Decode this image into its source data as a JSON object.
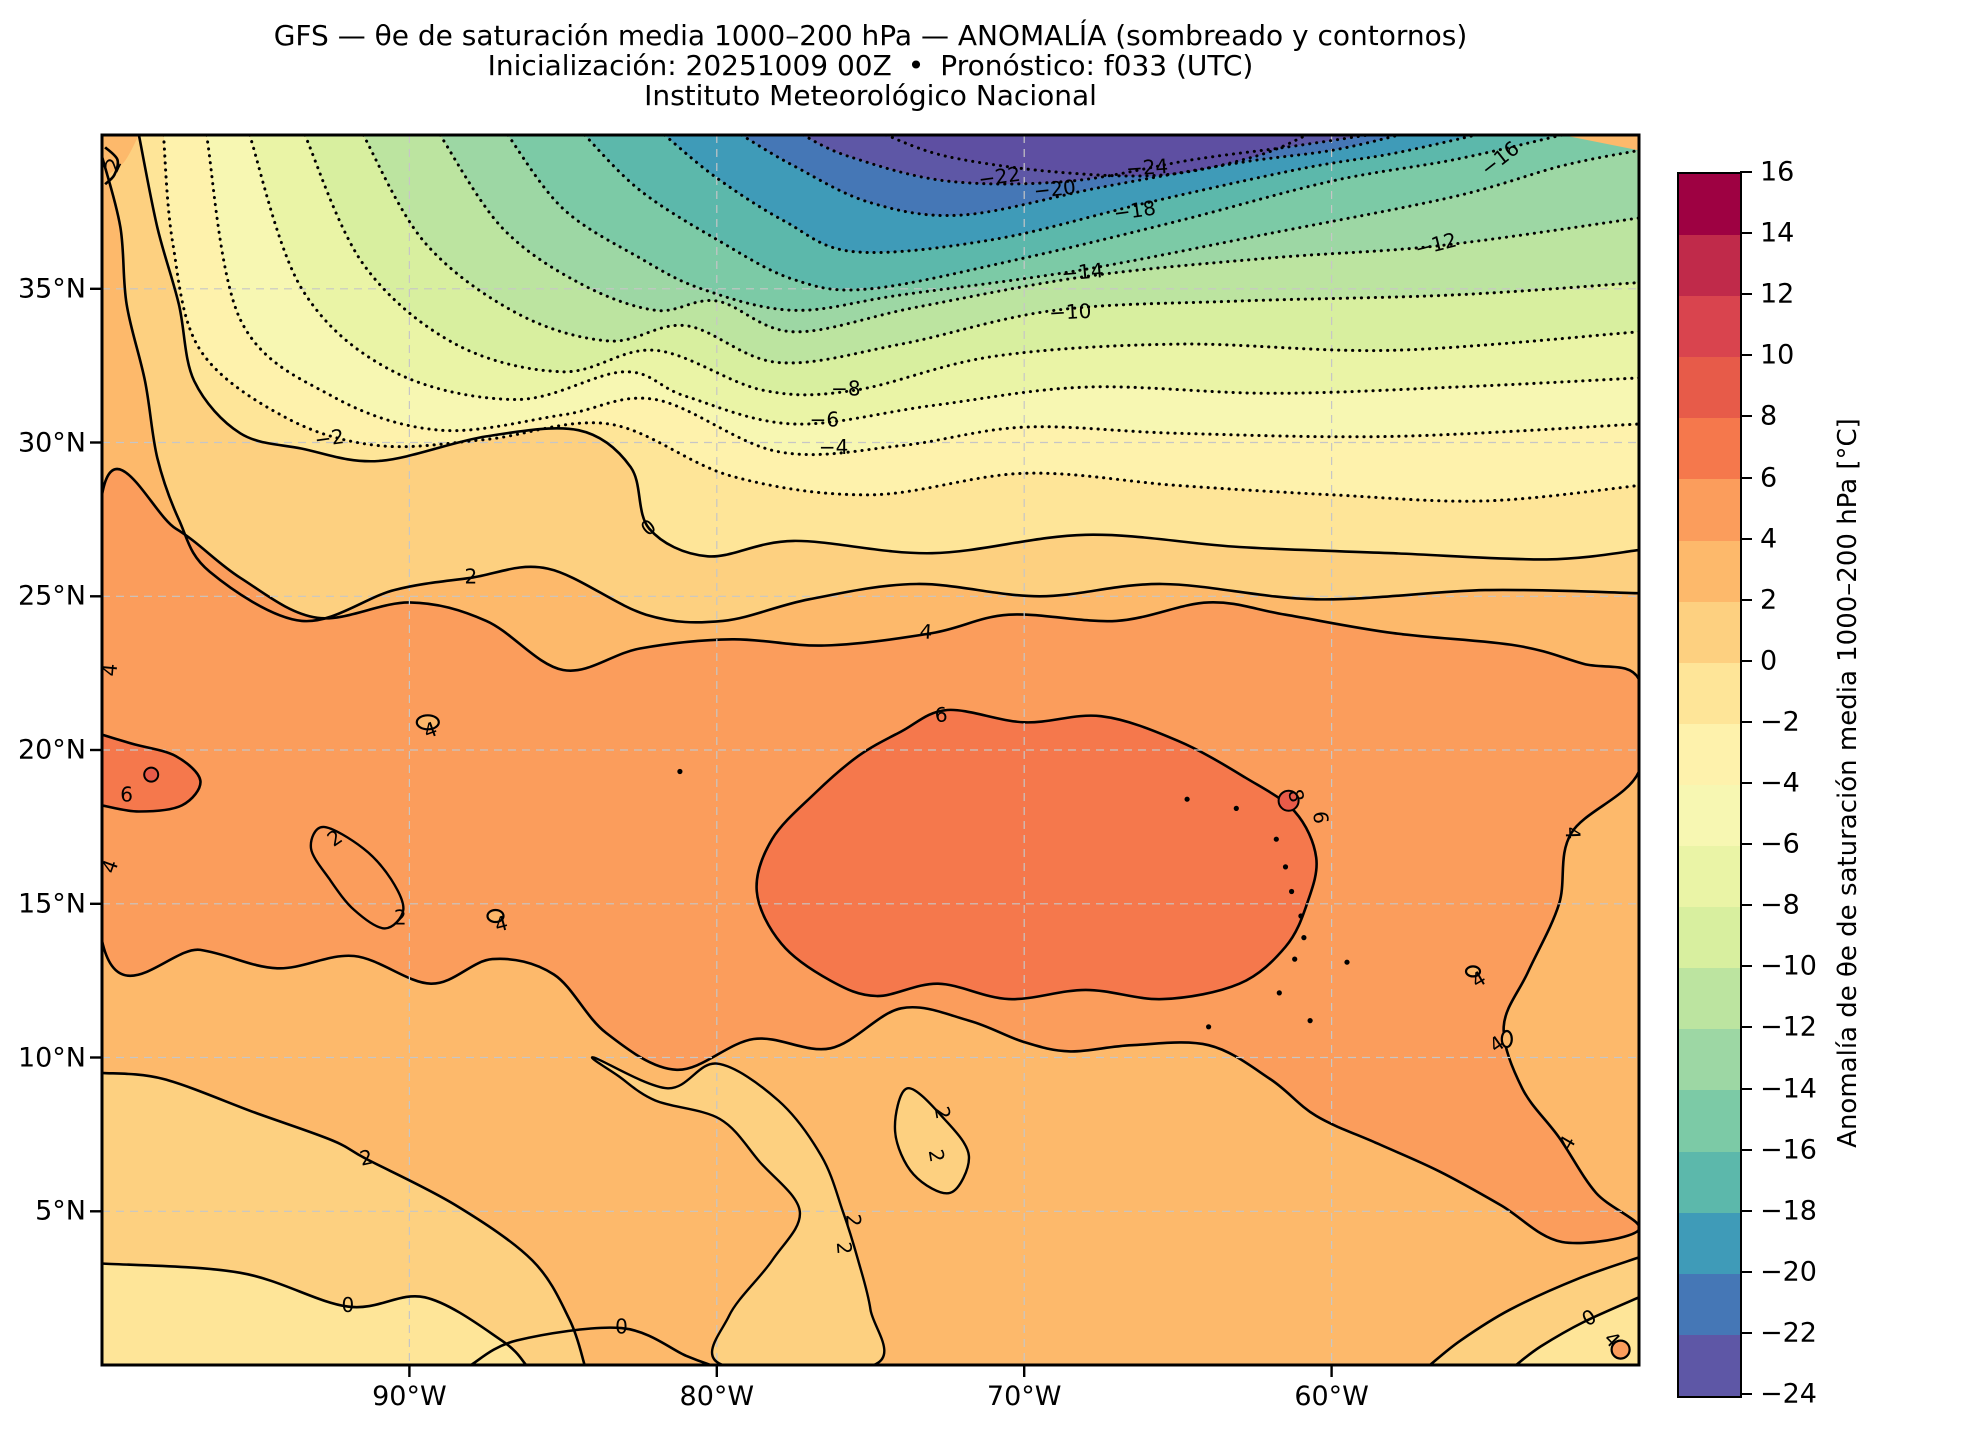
{
  "header": {
    "title": "GFS — θe de saturación media 1000–200 hPa — ANOMALÍA (sombreado y contornos)",
    "init": "Inicialización: 20251009 00Z",
    "sep": "•",
    "forecast": "Pronóstico: f033 (UTC)",
    "institution": "Instituto Meteorológico Nacional"
  },
  "axes": {
    "x_ticks": [
      {
        "label": "90°W",
        "lon": 90
      },
      {
        "label": "80°W",
        "lon": 80
      },
      {
        "label": "70°W",
        "lon": 70
      },
      {
        "label": "60°W",
        "lon": 60
      }
    ],
    "y_ticks": [
      {
        "label": "35°N",
        "lat": 35
      },
      {
        "label": "30°N",
        "lat": 30
      },
      {
        "label": "25°N",
        "lat": 25
      },
      {
        "label": "20°N",
        "lat": 20
      },
      {
        "label": "15°N",
        "lat": 15
      },
      {
        "label": "10°N",
        "lat": 10
      },
      {
        "label": "5°N",
        "lat": 5
      }
    ],
    "grid_lons": [
      90,
      80,
      70,
      60
    ],
    "grid_lats": [
      35,
      30,
      25,
      20,
      15,
      10,
      5
    ]
  },
  "colorbar": {
    "label": "Anomalía de θe de saturación media 1000–200 hPa [°C]",
    "ticks": [
      "16",
      "14",
      "12",
      "10",
      "8",
      "6",
      "4",
      "2",
      "0",
      "−2",
      "−4",
      "−6",
      "−8",
      "−10",
      "−12",
      "−14",
      "−16",
      "−18",
      "−20",
      "−22",
      "−24"
    ],
    "under_color": "#5e4fa2",
    "palette": [
      {
        "min": -24,
        "max": -22,
        "color": "#5e57a6"
      },
      {
        "min": -22,
        "max": -20,
        "color": "#4577b6"
      },
      {
        "min": -20,
        "max": -18,
        "color": "#3f9bb8"
      },
      {
        "min": -18,
        "max": -16,
        "color": "#5cb8ab"
      },
      {
        "min": -16,
        "max": -14,
        "color": "#7ccaa6"
      },
      {
        "min": -14,
        "max": -12,
        "color": "#9dd7a4"
      },
      {
        "min": -12,
        "max": -10,
        "color": "#bce4a0"
      },
      {
        "min": -10,
        "max": -8,
        "color": "#d8ef9f"
      },
      {
        "min": -8,
        "max": -6,
        "color": "#eaf4a6"
      },
      {
        "min": -6,
        "max": -4,
        "color": "#f7f7b2"
      },
      {
        "min": -4,
        "max": -2,
        "color": "#fef2ac"
      },
      {
        "min": -2,
        "max": 0,
        "color": "#fee598"
      },
      {
        "min": 0,
        "max": 2,
        "color": "#fdd080"
      },
      {
        "min": 2,
        "max": 4,
        "color": "#fdb96b"
      },
      {
        "min": 4,
        "max": 6,
        "color": "#fb9d5c"
      },
      {
        "min": 6,
        "max": 8,
        "color": "#f5784c"
      },
      {
        "min": 8,
        "max": 10,
        "color": "#e75b49"
      },
      {
        "min": 10,
        "max": 12,
        "color": "#d9444e"
      },
      {
        "min": 12,
        "max": 14,
        "color": "#c02a4a"
      },
      {
        "min": 14,
        "max": 16,
        "color": "#9e0142"
      }
    ]
  },
  "chart_data": {
    "type": "heatmap",
    "title": "GFS — θe de saturación media 1000–200 hPa — ANOMALÍA (sombreado y contornos)",
    "subtitle": "Inicialización: 20251009 00Z • Pronóstico: f033 (UTC) — Instituto Meteorológico Nacional",
    "variable": "Anomalía de θe de saturación media 1000–200 hPa [°C]",
    "extent": {
      "lon_west": 100,
      "lon_east": 50,
      "lat_south": 0,
      "lat_north": 40
    },
    "contour_interval": 2,
    "contour_levels": [
      -24,
      -22,
      -20,
      -18,
      -16,
      -14,
      -12,
      -10,
      -8,
      -6,
      -4,
      -2,
      0,
      2,
      4,
      6,
      8
    ],
    "negative_style": "dotted",
    "positive_style": "solid",
    "colorbar_range": [
      -24,
      16
    ],
    "pattern": "Fuerte anomalía negativa (hasta −24 °C) al noreste sobre el Atlántico noroccidental; anomalías positivas (2 a 8 °C) sobre el Golfo de México, el Caribe y Sudamérica tropical",
    "contour_labels": [
      {
        "v": "−24",
        "lon": 66.0,
        "lat": 38.9,
        "rot": -4
      },
      {
        "v": "−22",
        "lon": 70.8,
        "lat": 38.6,
        "rot": -8
      },
      {
        "v": "−20",
        "lon": 69.0,
        "lat": 38.2,
        "rot": -6
      },
      {
        "v": "−18",
        "lon": 66.4,
        "lat": 37.5,
        "rot": -8
      },
      {
        "v": "−16",
        "lon": 54.5,
        "lat": 39.2,
        "rot": -38
      },
      {
        "v": "−14",
        "lon": 68.1,
        "lat": 35.5,
        "rot": -5
      },
      {
        "v": "−12",
        "lon": 56.6,
        "lat": 36.4,
        "rot": -14
      },
      {
        "v": "−10",
        "lon": 68.5,
        "lat": 34.2,
        "rot": -3
      },
      {
        "v": "−8",
        "lon": 75.8,
        "lat": 31.7,
        "rot": 0
      },
      {
        "v": "−6",
        "lon": 76.5,
        "lat": 30.7,
        "rot": 0
      },
      {
        "v": "−4",
        "lon": 76.2,
        "lat": 29.8,
        "rot": 0
      },
      {
        "v": "−2",
        "lon": 92.6,
        "lat": 30.1,
        "rot": -8
      },
      {
        "v": "0",
        "lon": 82.2,
        "lat": 27.2,
        "rot": -38
      },
      {
        "v": "0",
        "lon": 92.0,
        "lat": 1.9,
        "rot": 0
      },
      {
        "v": "0",
        "lon": 83.1,
        "lat": 1.2,
        "rot": 0
      },
      {
        "v": "0",
        "lon": 51.6,
        "lat": 1.5,
        "rot": -30
      },
      {
        "v": "2",
        "lon": 99.6,
        "lat": 39.0,
        "rot": -65
      },
      {
        "v": "2",
        "lon": 88.0,
        "lat": 25.6,
        "rot": 0
      },
      {
        "v": "2",
        "lon": 91.4,
        "lat": 6.7,
        "rot": -12
      },
      {
        "v": "2",
        "lon": 92.4,
        "lat": 17.1,
        "rot": -35
      },
      {
        "v": "2",
        "lon": 90.3,
        "lat": 14.5,
        "rot": 0
      },
      {
        "v": "2",
        "lon": 75.6,
        "lat": 4.7,
        "rot": 85
      },
      {
        "v": "2",
        "lon": 75.9,
        "lat": 3.8,
        "rot": 85
      },
      {
        "v": "2",
        "lon": 72.7,
        "lat": 8.2,
        "rot": 80
      },
      {
        "v": "2",
        "lon": 72.9,
        "lat": 6.8,
        "rot": 80
      },
      {
        "v": "4",
        "lon": 73.2,
        "lat": 23.8,
        "rot": 4
      },
      {
        "v": "4",
        "lon": 52.2,
        "lat": 17.3,
        "rot": 88
      },
      {
        "v": "4",
        "lon": 54.6,
        "lat": 10.4,
        "rot": -35
      },
      {
        "v": "4",
        "lon": 52.3,
        "lat": 7.2,
        "rot": -60
      },
      {
        "v": "4",
        "lon": 99.7,
        "lat": 22.6,
        "rot": -85
      },
      {
        "v": "4",
        "lon": 99.7,
        "lat": 16.2,
        "rot": -70
      },
      {
        "v": "4",
        "lon": 89.3,
        "lat": 20.6,
        "rot": -20
      },
      {
        "v": "4",
        "lon": 87.0,
        "lat": 14.3,
        "rot": -15
      },
      {
        "v": "4",
        "lon": 55.2,
        "lat": 12.5,
        "rot": -30
      },
      {
        "v": "4",
        "lon": 50.9,
        "lat": 0.8,
        "rot": 45
      },
      {
        "v": "6",
        "lon": 72.7,
        "lat": 21.1,
        "rot": -6
      },
      {
        "v": "6",
        "lon": 60.4,
        "lat": 17.8,
        "rot": 85
      },
      {
        "v": "6",
        "lon": 99.2,
        "lat": 18.5,
        "rot": 0
      },
      {
        "v": "8",
        "lon": 61.2,
        "lat": 18.5,
        "rot": 75
      }
    ]
  }
}
